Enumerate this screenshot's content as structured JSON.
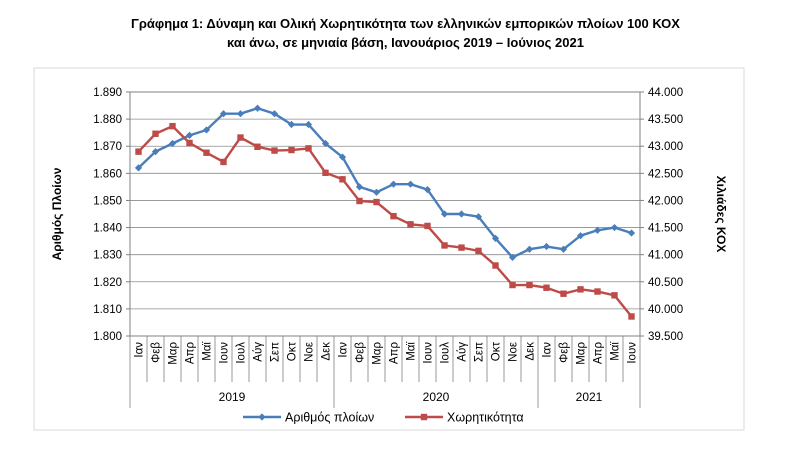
{
  "chart_data": {
    "type": "line",
    "title": "Γράφημα 1: Δύναμη και Ολική Χωρητικότητα των ελληνικών εμπορικών πλοίων 100 ΚΟΧ",
    "subtitle": "και άνω, σε μηνιαία βάση, Ιανουάριος 2019 – Ιούνιος 2021",
    "ylabel_left": "Αριθμός Πλοίων",
    "ylabel_right": "Χιλιάδες ΚΟΧ",
    "ylim_left": [
      1800,
      1890
    ],
    "ylim_right": [
      39500,
      44000
    ],
    "y_ticks_left": [
      "1.800",
      "1.810",
      "1.820",
      "1.830",
      "1.840",
      "1.850",
      "1.860",
      "1.870",
      "1.880",
      "1.890"
    ],
    "y_ticks_right": [
      "39.500",
      "40.000",
      "40.500",
      "41.000",
      "41.500",
      "42.000",
      "42.500",
      "43.000",
      "43.500",
      "44.000"
    ],
    "categories": [
      "Ιαν",
      "Φεβ",
      "Μαρ",
      "Απρ",
      "Μαϊ",
      "Ιουν",
      "Ιουλ",
      "Αύγ",
      "Σεπ",
      "Οκτ",
      "Νοε",
      "Δεκ",
      "Ιαν",
      "Φεβ",
      "Μαρ",
      "Απρ",
      "Μαϊ",
      "Ιουν",
      "Ιουλ",
      "Αύγ",
      "Σεπ",
      "Οκτ",
      "Νοε",
      "Δεκ",
      "Ιαν",
      "Φεβ",
      "Μαρ",
      "Απρ",
      "Μαϊ",
      "Ιουν"
    ],
    "years": [
      {
        "label": "2019",
        "start": 0,
        "end": 11
      },
      {
        "label": "2020",
        "start": 12,
        "end": 23
      },
      {
        "label": "2021",
        "start": 24,
        "end": 29
      }
    ],
    "series": [
      {
        "name": "Αριθμός πλοίων",
        "axis": "left",
        "color": "#4a7ebb",
        "marker": "diamond",
        "values": [
          1862,
          1868,
          1871,
          1874,
          1876,
          1882,
          1882,
          1884,
          1882,
          1878,
          1878,
          1871,
          1866,
          1855,
          1853,
          1856,
          1856,
          1854,
          1845,
          1845,
          1844,
          1836,
          1829,
          1832,
          1833,
          1832,
          1837,
          1839,
          1840,
          1838
        ]
      },
      {
        "name": "Χωρητικότητα",
        "axis": "right",
        "color": "#be4b48",
        "marker": "square",
        "values": [
          42900,
          43230,
          43370,
          43060,
          42880,
          42710,
          43160,
          42990,
          42920,
          42930,
          42960,
          42510,
          42390,
          41990,
          41970,
          41710,
          41560,
          41530,
          41170,
          41130,
          41070,
          40800,
          40440,
          40440,
          40390,
          40280,
          40360,
          40320,
          40250,
          39860
        ]
      }
    ],
    "legend_position": "bottom",
    "grid": true
  }
}
